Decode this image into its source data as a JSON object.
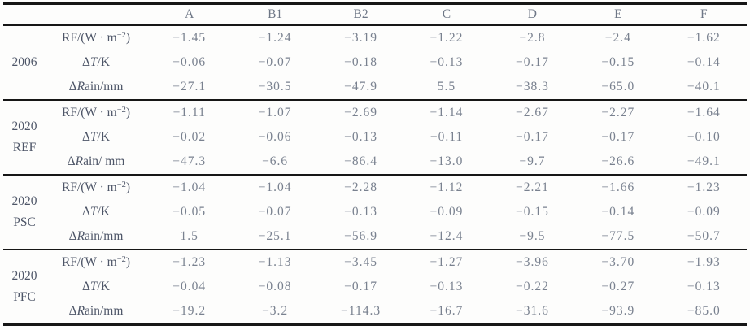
{
  "table": {
    "columns": [
      "A",
      "B1",
      "B2",
      "C",
      "D",
      "E",
      "F"
    ],
    "groups": [
      {
        "label": [
          "2006"
        ],
        "rows": [
          {
            "metric": [
              {
                "text": "RF/(W · m",
                "style": ""
              },
              {
                "text": "−2",
                "style": "sup"
              },
              {
                "text": ")",
                "style": ""
              }
            ],
            "values": [
              "−1.45",
              "−1.24",
              "−3.19",
              "−1.22",
              "−2.8",
              "−2.4",
              "−1.62"
            ]
          },
          {
            "metric": [
              {
                "text": "Δ",
                "style": ""
              },
              {
                "text": "T",
                "style": "italic"
              },
              {
                "text": "/K",
                "style": ""
              }
            ],
            "values": [
              "−0.06",
              "−0.07",
              "−0.18",
              "−0.13",
              "−0.17",
              "−0.15",
              "−0.14"
            ]
          },
          {
            "metric": [
              {
                "text": "Δ",
                "style": ""
              },
              {
                "text": "R",
                "style": "italic"
              },
              {
                "text": "ain/mm",
                "style": ""
              }
            ],
            "values": [
              "−27.1",
              "−30.5",
              "−47.9",
              "5.5",
              "−38.3",
              "−65.0",
              "−40.1"
            ]
          }
        ]
      },
      {
        "label": [
          "2020",
          "REF"
        ],
        "rows": [
          {
            "metric": [
              {
                "text": "RF/(W · m",
                "style": ""
              },
              {
                "text": "−2",
                "style": "sup"
              },
              {
                "text": ")",
                "style": ""
              }
            ],
            "values": [
              "−1.11",
              "−1.07",
              "−2.69",
              "−1.14",
              "−2.67",
              "−2.27",
              "−1.64"
            ]
          },
          {
            "metric": [
              {
                "text": "Δ",
                "style": ""
              },
              {
                "text": "T",
                "style": "italic"
              },
              {
                "text": "/K",
                "style": ""
              }
            ],
            "values": [
              "−0.02",
              "−0.06",
              "−0.13",
              "−0.11",
              "−0.17",
              "−0.17",
              "−0.10"
            ]
          },
          {
            "metric": [
              {
                "text": "Δ",
                "style": ""
              },
              {
                "text": "R",
                "style": "italic"
              },
              {
                "text": "ain/ mm",
                "style": ""
              }
            ],
            "values": [
              "−47.3",
              "−6.6",
              "−86.4",
              "−13.0",
              "−9.7",
              "−26.6",
              "−49.1"
            ]
          }
        ]
      },
      {
        "label": [
          "2020",
          "PSC"
        ],
        "rows": [
          {
            "metric": [
              {
                "text": "RF/(W · m",
                "style": ""
              },
              {
                "text": "−2",
                "style": "sup"
              },
              {
                "text": ")",
                "style": ""
              }
            ],
            "values": [
              "−1.04",
              "−1.04",
              "−2.28",
              "−1.12",
              "−2.21",
              "−1.66",
              "−1.23"
            ]
          },
          {
            "metric": [
              {
                "text": "Δ",
                "style": ""
              },
              {
                "text": "T",
                "style": "italic"
              },
              {
                "text": "/K",
                "style": ""
              }
            ],
            "values": [
              "−0.05",
              "−0.07",
              "−0.13",
              "−0.09",
              "−0.15",
              "−0.14",
              "−0.09"
            ]
          },
          {
            "metric": [
              {
                "text": "Δ",
                "style": ""
              },
              {
                "text": "R",
                "style": "italic"
              },
              {
                "text": "ain/mm",
                "style": ""
              }
            ],
            "values": [
              "1.5",
              "−25.1",
              "−56.9",
              "−12.4",
              "−9.5",
              "−77.5",
              "−50.7"
            ]
          }
        ]
      },
      {
        "label": [
          "2020",
          "PFC"
        ],
        "rows": [
          {
            "metric": [
              {
                "text": "RF/(W · m",
                "style": ""
              },
              {
                "text": "−2",
                "style": "sup"
              },
              {
                "text": ")",
                "style": ""
              }
            ],
            "values": [
              "−1.23",
              "−1.13",
              "−3.45",
              "−1.27",
              "−3.96",
              "−3.70",
              "−1.93"
            ]
          },
          {
            "metric": [
              {
                "text": "Δ",
                "style": ""
              },
              {
                "text": "T",
                "style": "italic"
              },
              {
                "text": "/K",
                "style": ""
              }
            ],
            "values": [
              "−0.04",
              "−0.08",
              "−0.17",
              "−0.13",
              "−0.22",
              "−0.27",
              "−0.13"
            ]
          },
          {
            "metric": [
              {
                "text": "Δ",
                "style": ""
              },
              {
                "text": "R",
                "style": "italic"
              },
              {
                "text": "ain/mm",
                "style": ""
              }
            ],
            "values": [
              "−19.2",
              "−3.2",
              "−114.3",
              "−16.7",
              "−31.6",
              "−93.9",
              "−85.0"
            ]
          }
        ]
      }
    ]
  },
  "colors": {
    "rule": "#161616",
    "header_text": "#6e7786",
    "label_text": "#4e5668",
    "value_text": "#79818f",
    "background": "#fdfdfc"
  },
  "chart_data": {
    "type": "table",
    "columns": [
      "",
      "",
      "A",
      "B1",
      "B2",
      "C",
      "D",
      "E",
      "F"
    ],
    "rows": [
      [
        "2006",
        "RF/(W·m−2)",
        -1.45,
        -1.24,
        -3.19,
        -1.22,
        -2.8,
        -2.4,
        -1.62
      ],
      [
        "2006",
        "ΔT/K",
        -0.06,
        -0.07,
        -0.18,
        -0.13,
        -0.17,
        -0.15,
        -0.14
      ],
      [
        "2006",
        "ΔRain/mm",
        -27.1,
        -30.5,
        -47.9,
        5.5,
        -38.3,
        -65.0,
        -40.1
      ],
      [
        "2020 REF",
        "RF/(W·m−2)",
        -1.11,
        -1.07,
        -2.69,
        -1.14,
        -2.67,
        -2.27,
        -1.64
      ],
      [
        "2020 REF",
        "ΔT/K",
        -0.02,
        -0.06,
        -0.13,
        -0.11,
        -0.17,
        -0.17,
        -0.1
      ],
      [
        "2020 REF",
        "ΔRain/ mm",
        -47.3,
        -6.6,
        -86.4,
        -13.0,
        -9.7,
        -26.6,
        -49.1
      ],
      [
        "2020 PSC",
        "RF/(W·m−2)",
        -1.04,
        -1.04,
        -2.28,
        -1.12,
        -2.21,
        -1.66,
        -1.23
      ],
      [
        "2020 PSC",
        "ΔT/K",
        -0.05,
        -0.07,
        -0.13,
        -0.09,
        -0.15,
        -0.14,
        -0.09
      ],
      [
        "2020 PSC",
        "ΔRain/mm",
        1.5,
        -25.1,
        -56.9,
        -12.4,
        -9.5,
        -77.5,
        -50.7
      ],
      [
        "2020 PFC",
        "RF/(W·m−2)",
        -1.23,
        -1.13,
        -3.45,
        -1.27,
        -3.96,
        -3.7,
        -1.93
      ],
      [
        "2020 PFC",
        "ΔT/K",
        -0.04,
        -0.08,
        -0.17,
        -0.13,
        -0.22,
        -0.27,
        -0.13
      ],
      [
        "2020 PFC",
        "ΔRain/mm",
        -19.2,
        -3.2,
        -114.3,
        -16.7,
        -31.6,
        -93.9,
        -85.0
      ]
    ]
  }
}
